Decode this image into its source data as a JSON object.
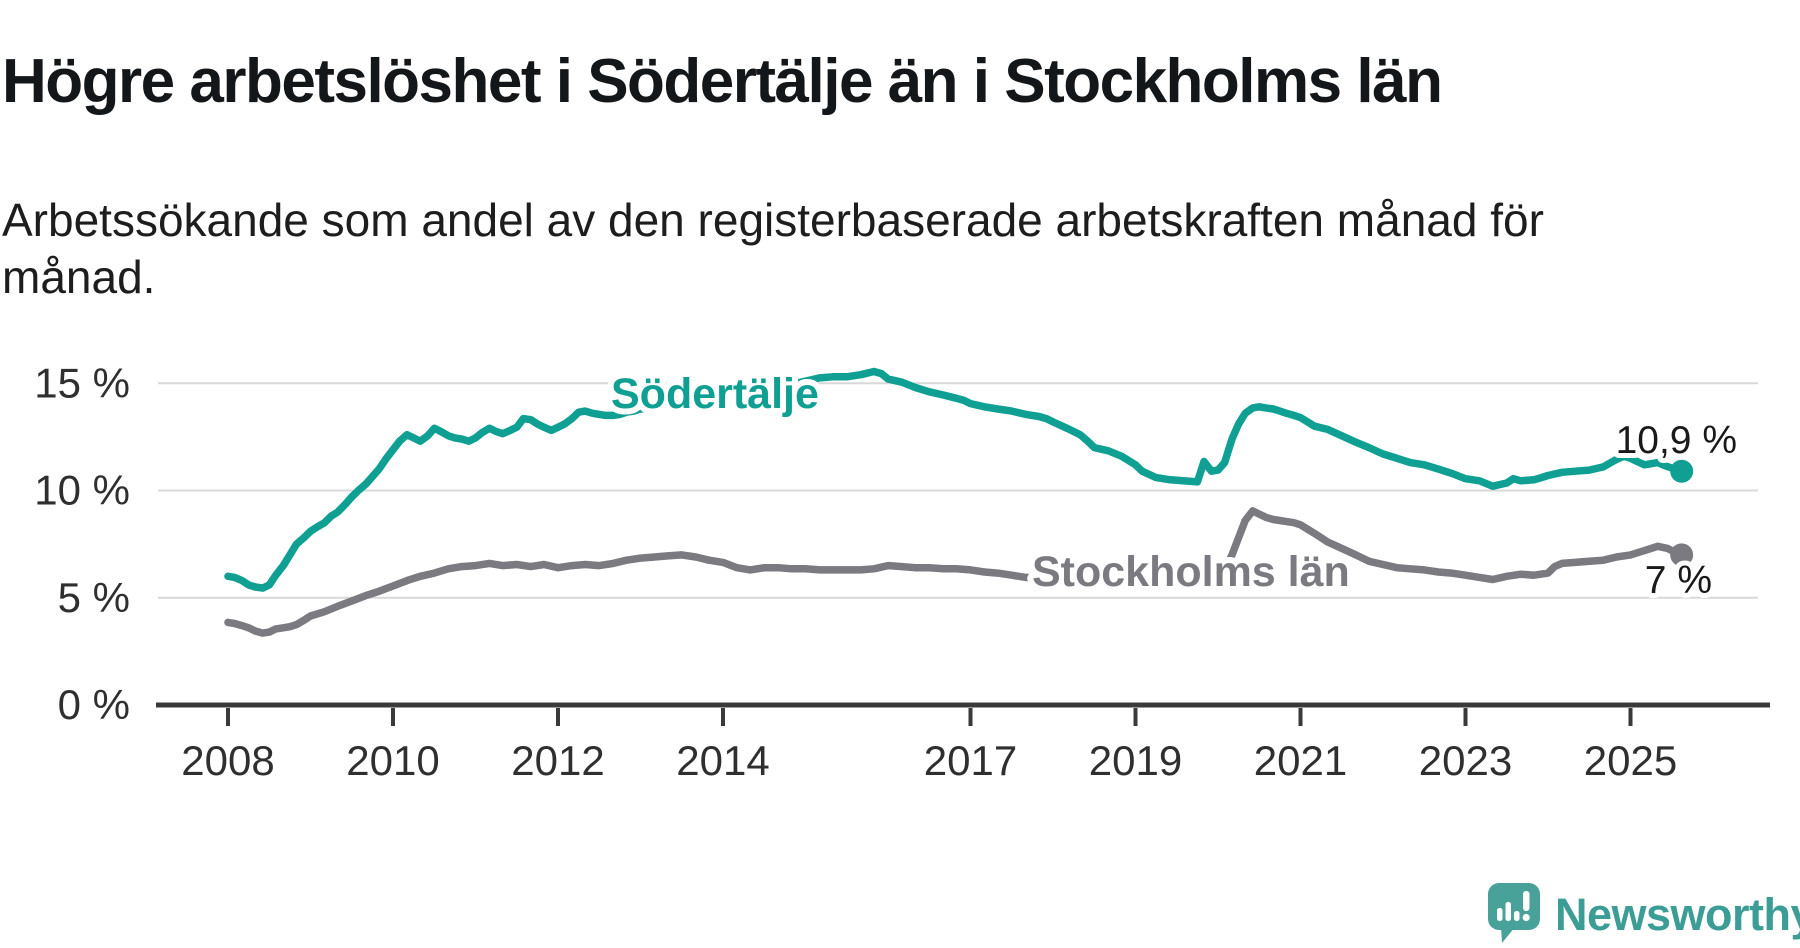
{
  "header": {
    "title": "Högre arbetslöshet i Södertälje än i Stockholms län",
    "subtitle_line1": "Arbetssökande som andel av den registerbaserade arbetskraften månad för",
    "subtitle_line2": "månad."
  },
  "colors": {
    "accent_teal": "#0fa093",
    "series_gray": "#7b7a80",
    "grid": "#d8d8d8",
    "axis": "#3a3a3a",
    "tick_text": "#2f2f2f",
    "value_text": "#191919",
    "logo_teal": "#3c9d96",
    "logo_icon_teal": "#48a29a"
  },
  "footer": {
    "brand": "Newsworthy"
  },
  "chart_data": {
    "type": "line",
    "title": "Högre arbetslöshet i Södertälje än i Stockholms län",
    "subtitle": "Arbetssökande som andel av den registerbaserade arbetskraften månad för månad.",
    "unit": "%",
    "x_axis": {
      "ticks": [
        2008,
        2010,
        2012,
        2014,
        2017,
        2019,
        2021,
        2023,
        2025
      ],
      "tick_labels": [
        "2008",
        "2010",
        "2012",
        "2014",
        "2017",
        "2019",
        "2021",
        "2023",
        "2025"
      ],
      "range": [
        2008.0,
        2026.6
      ]
    },
    "y_axis": {
      "ticks": [
        0,
        5,
        10,
        15
      ],
      "tick_labels": [
        "0 %",
        "5 %",
        "10 %",
        "15 %"
      ],
      "range": [
        0,
        17.2
      ],
      "grid": true
    },
    "legend_position": "inline-labels",
    "series": [
      {
        "name": "Södertälje",
        "color": "#0fa093",
        "end_label": "10,9 %",
        "end_value": 10.9,
        "points": [
          [
            2008.0,
            6.0
          ],
          [
            2008.08,
            5.95
          ],
          [
            2008.17,
            5.8
          ],
          [
            2008.25,
            5.6
          ],
          [
            2008.33,
            5.5
          ],
          [
            2008.42,
            5.45
          ],
          [
            2008.5,
            5.6
          ],
          [
            2008.58,
            6.05
          ],
          [
            2008.67,
            6.5
          ],
          [
            2008.75,
            7.0
          ],
          [
            2008.83,
            7.5
          ],
          [
            2008.92,
            7.8
          ],
          [
            2009.0,
            8.1
          ],
          [
            2009.08,
            8.3
          ],
          [
            2009.17,
            8.5
          ],
          [
            2009.25,
            8.8
          ],
          [
            2009.33,
            9.0
          ],
          [
            2009.42,
            9.35
          ],
          [
            2009.5,
            9.7
          ],
          [
            2009.58,
            10.0
          ],
          [
            2009.67,
            10.3
          ],
          [
            2009.75,
            10.65
          ],
          [
            2009.83,
            11.0
          ],
          [
            2009.92,
            11.5
          ],
          [
            2010.0,
            11.9
          ],
          [
            2010.08,
            12.3
          ],
          [
            2010.17,
            12.6
          ],
          [
            2010.25,
            12.45
          ],
          [
            2010.33,
            12.3
          ],
          [
            2010.42,
            12.55
          ],
          [
            2010.5,
            12.9
          ],
          [
            2010.58,
            12.75
          ],
          [
            2010.67,
            12.55
          ],
          [
            2010.75,
            12.45
          ],
          [
            2010.83,
            12.4
          ],
          [
            2010.92,
            12.3
          ],
          [
            2011.0,
            12.45
          ],
          [
            2011.08,
            12.7
          ],
          [
            2011.17,
            12.9
          ],
          [
            2011.25,
            12.75
          ],
          [
            2011.33,
            12.65
          ],
          [
            2011.42,
            12.8
          ],
          [
            2011.5,
            12.95
          ],
          [
            2011.58,
            13.35
          ],
          [
            2011.67,
            13.3
          ],
          [
            2011.75,
            13.1
          ],
          [
            2011.83,
            12.95
          ],
          [
            2011.92,
            12.8
          ],
          [
            2012.0,
            12.95
          ],
          [
            2012.08,
            13.1
          ],
          [
            2012.17,
            13.35
          ],
          [
            2012.25,
            13.65
          ],
          [
            2012.33,
            13.7
          ],
          [
            2012.42,
            13.6
          ],
          [
            2012.5,
            13.55
          ],
          [
            2012.58,
            13.5
          ],
          [
            2012.67,
            13.5
          ],
          [
            2012.75,
            13.55
          ],
          [
            2012.83,
            13.65
          ],
          [
            2012.92,
            13.7
          ],
          [
            2013.0,
            13.8
          ],
          [
            2013.17,
            13.9
          ],
          [
            2013.33,
            13.95
          ],
          [
            2013.5,
            14.0
          ],
          [
            2013.67,
            14.1
          ],
          [
            2013.83,
            14.25
          ],
          [
            2014.0,
            14.4
          ],
          [
            2014.17,
            14.5
          ],
          [
            2014.33,
            14.6
          ],
          [
            2014.5,
            14.7
          ],
          [
            2014.67,
            14.8
          ],
          [
            2014.83,
            14.95
          ],
          [
            2015.0,
            15.1
          ],
          [
            2015.17,
            15.25
          ],
          [
            2015.33,
            15.3
          ],
          [
            2015.5,
            15.3
          ],
          [
            2015.67,
            15.4
          ],
          [
            2015.83,
            15.55
          ],
          [
            2015.92,
            15.45
          ],
          [
            2016.0,
            15.2
          ],
          [
            2016.17,
            15.05
          ],
          [
            2016.33,
            14.8
          ],
          [
            2016.5,
            14.6
          ],
          [
            2016.67,
            14.45
          ],
          [
            2016.83,
            14.3
          ],
          [
            2016.92,
            14.2
          ],
          [
            2017.0,
            14.05
          ],
          [
            2017.17,
            13.9
          ],
          [
            2017.33,
            13.8
          ],
          [
            2017.5,
            13.7
          ],
          [
            2017.67,
            13.55
          ],
          [
            2017.83,
            13.45
          ],
          [
            2017.92,
            13.35
          ],
          [
            2018.0,
            13.2
          ],
          [
            2018.17,
            12.9
          ],
          [
            2018.33,
            12.6
          ],
          [
            2018.42,
            12.3
          ],
          [
            2018.5,
            12.0
          ],
          [
            2018.67,
            11.85
          ],
          [
            2018.83,
            11.6
          ],
          [
            2019.0,
            11.2
          ],
          [
            2019.08,
            10.9
          ],
          [
            2019.25,
            10.6
          ],
          [
            2019.42,
            10.5
          ],
          [
            2019.58,
            10.45
          ],
          [
            2019.75,
            10.4
          ],
          [
            2019.83,
            11.35
          ],
          [
            2019.92,
            10.9
          ],
          [
            2020.0,
            10.95
          ],
          [
            2020.08,
            11.3
          ],
          [
            2020.17,
            12.4
          ],
          [
            2020.25,
            13.1
          ],
          [
            2020.33,
            13.6
          ],
          [
            2020.42,
            13.85
          ],
          [
            2020.5,
            13.9
          ],
          [
            2020.58,
            13.85
          ],
          [
            2020.67,
            13.8
          ],
          [
            2020.75,
            13.7
          ],
          [
            2020.83,
            13.6
          ],
          [
            2020.92,
            13.5
          ],
          [
            2021.0,
            13.4
          ],
          [
            2021.17,
            13.0
          ],
          [
            2021.33,
            12.85
          ],
          [
            2021.5,
            12.55
          ],
          [
            2021.67,
            12.25
          ],
          [
            2021.83,
            12.0
          ],
          [
            2022.0,
            11.7
          ],
          [
            2022.17,
            11.5
          ],
          [
            2022.33,
            11.3
          ],
          [
            2022.5,
            11.2
          ],
          [
            2022.67,
            11.0
          ],
          [
            2022.83,
            10.8
          ],
          [
            2023.0,
            10.55
          ],
          [
            2023.17,
            10.45
          ],
          [
            2023.33,
            10.2
          ],
          [
            2023.5,
            10.35
          ],
          [
            2023.58,
            10.55
          ],
          [
            2023.67,
            10.45
          ],
          [
            2023.83,
            10.5
          ],
          [
            2023.92,
            10.6
          ],
          [
            2024.0,
            10.7
          ],
          [
            2024.17,
            10.85
          ],
          [
            2024.33,
            10.9
          ],
          [
            2024.5,
            10.95
          ],
          [
            2024.67,
            11.1
          ],
          [
            2024.83,
            11.45
          ],
          [
            2024.92,
            11.6
          ],
          [
            2025.0,
            11.5
          ],
          [
            2025.08,
            11.35
          ],
          [
            2025.17,
            11.2
          ],
          [
            2025.33,
            11.3
          ],
          [
            2025.42,
            11.15
          ],
          [
            2025.5,
            11.05
          ],
          [
            2025.62,
            10.9
          ]
        ]
      },
      {
        "name": "Stockholms län",
        "color": "#7b7a80",
        "end_label": "7 %",
        "end_value": 7.0,
        "points": [
          [
            2008.0,
            3.85
          ],
          [
            2008.08,
            3.8
          ],
          [
            2008.17,
            3.7
          ],
          [
            2008.25,
            3.6
          ],
          [
            2008.33,
            3.45
          ],
          [
            2008.42,
            3.35
          ],
          [
            2008.5,
            3.4
          ],
          [
            2008.58,
            3.55
          ],
          [
            2008.67,
            3.6
          ],
          [
            2008.75,
            3.65
          ],
          [
            2008.83,
            3.75
          ],
          [
            2008.92,
            3.95
          ],
          [
            2009.0,
            4.15
          ],
          [
            2009.17,
            4.35
          ],
          [
            2009.33,
            4.6
          ],
          [
            2009.5,
            4.85
          ],
          [
            2009.67,
            5.1
          ],
          [
            2009.83,
            5.3
          ],
          [
            2010.0,
            5.55
          ],
          [
            2010.17,
            5.8
          ],
          [
            2010.33,
            6.0
          ],
          [
            2010.5,
            6.15
          ],
          [
            2010.67,
            6.35
          ],
          [
            2010.83,
            6.45
          ],
          [
            2011.0,
            6.5
          ],
          [
            2011.17,
            6.6
          ],
          [
            2011.33,
            6.5
          ],
          [
            2011.5,
            6.55
          ],
          [
            2011.67,
            6.45
          ],
          [
            2011.83,
            6.55
          ],
          [
            2012.0,
            6.4
          ],
          [
            2012.17,
            6.5
          ],
          [
            2012.33,
            6.55
          ],
          [
            2012.5,
            6.5
          ],
          [
            2012.67,
            6.6
          ],
          [
            2012.83,
            6.75
          ],
          [
            2013.0,
            6.85
          ],
          [
            2013.17,
            6.9
          ],
          [
            2013.33,
            6.95
          ],
          [
            2013.5,
            7.0
          ],
          [
            2013.67,
            6.9
          ],
          [
            2013.83,
            6.75
          ],
          [
            2014.0,
            6.65
          ],
          [
            2014.17,
            6.4
          ],
          [
            2014.33,
            6.3
          ],
          [
            2014.5,
            6.4
          ],
          [
            2014.67,
            6.4
          ],
          [
            2014.83,
            6.35
          ],
          [
            2015.0,
            6.35
          ],
          [
            2015.17,
            6.3
          ],
          [
            2015.33,
            6.3
          ],
          [
            2015.5,
            6.3
          ],
          [
            2015.67,
            6.3
          ],
          [
            2015.83,
            6.35
          ],
          [
            2016.0,
            6.5
          ],
          [
            2016.17,
            6.45
          ],
          [
            2016.33,
            6.4
          ],
          [
            2016.5,
            6.4
          ],
          [
            2016.67,
            6.35
          ],
          [
            2016.83,
            6.35
          ],
          [
            2017.0,
            6.3
          ],
          [
            2017.17,
            6.2
          ],
          [
            2017.33,
            6.15
          ],
          [
            2017.5,
            6.05
          ],
          [
            2017.67,
            5.95
          ],
          [
            2017.83,
            5.9
          ],
          [
            2018.0,
            5.95
          ],
          [
            2018.25,
            5.9
          ],
          [
            2018.5,
            5.85
          ],
          [
            2018.75,
            5.9
          ],
          [
            2019.0,
            6.0
          ],
          [
            2019.25,
            5.95
          ],
          [
            2019.5,
            5.95
          ],
          [
            2019.75,
            6.0
          ],
          [
            2019.92,
            6.05
          ],
          [
            2020.0,
            6.15
          ],
          [
            2020.08,
            6.3
          ],
          [
            2020.17,
            7.0
          ],
          [
            2020.25,
            7.8
          ],
          [
            2020.33,
            8.6
          ],
          [
            2020.42,
            9.05
          ],
          [
            2020.5,
            8.9
          ],
          [
            2020.58,
            8.75
          ],
          [
            2020.67,
            8.65
          ],
          [
            2020.75,
            8.6
          ],
          [
            2020.83,
            8.55
          ],
          [
            2020.92,
            8.5
          ],
          [
            2021.0,
            8.4
          ],
          [
            2021.17,
            8.0
          ],
          [
            2021.33,
            7.6
          ],
          [
            2021.5,
            7.3
          ],
          [
            2021.67,
            7.0
          ],
          [
            2021.83,
            6.7
          ],
          [
            2022.0,
            6.55
          ],
          [
            2022.17,
            6.4
          ],
          [
            2022.33,
            6.35
          ],
          [
            2022.5,
            6.3
          ],
          [
            2022.67,
            6.2
          ],
          [
            2022.83,
            6.15
          ],
          [
            2023.0,
            6.05
          ],
          [
            2023.17,
            5.95
          ],
          [
            2023.33,
            5.85
          ],
          [
            2023.5,
            6.0
          ],
          [
            2023.67,
            6.1
          ],
          [
            2023.83,
            6.05
          ],
          [
            2024.0,
            6.15
          ],
          [
            2024.08,
            6.45
          ],
          [
            2024.17,
            6.6
          ],
          [
            2024.33,
            6.65
          ],
          [
            2024.5,
            6.7
          ],
          [
            2024.67,
            6.75
          ],
          [
            2024.83,
            6.9
          ],
          [
            2025.0,
            7.0
          ],
          [
            2025.17,
            7.2
          ],
          [
            2025.33,
            7.4
          ],
          [
            2025.45,
            7.3
          ],
          [
            2025.55,
            7.1
          ],
          [
            2025.62,
            7.0
          ]
        ]
      }
    ]
  }
}
